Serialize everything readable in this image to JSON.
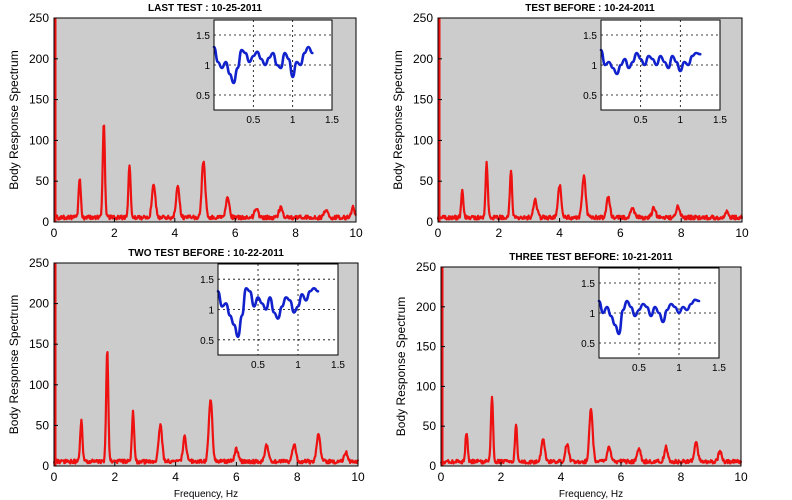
{
  "chart_data": [
    {
      "type": "line",
      "title": "LAST TEST : 10-25-2011",
      "xlabel": "",
      "ylabel": "Body Response Spectrum",
      "xlim": [
        0,
        10
      ],
      "ylim": [
        0,
        250
      ],
      "xticks": [
        "0",
        "2",
        "4",
        "6",
        "8",
        "10"
      ],
      "yticks": [
        "0",
        "50",
        "100",
        "150",
        "200",
        "250"
      ],
      "series_color": "#ee1111",
      "background": "#cccccc",
      "peaks": [
        {
          "x": 0.85,
          "y": 50
        },
        {
          "x": 1.65,
          "y": 118
        },
        {
          "x": 2.5,
          "y": 65
        },
        {
          "x": 3.3,
          "y": 40
        },
        {
          "x": 4.1,
          "y": 38
        },
        {
          "x": 4.95,
          "y": 70
        },
        {
          "x": 5.75,
          "y": 25
        },
        {
          "x": 6.7,
          "y": 12
        },
        {
          "x": 7.5,
          "y": 12
        },
        {
          "x": 9.0,
          "y": 10
        },
        {
          "x": 9.9,
          "y": 12
        }
      ],
      "inset": {
        "xlim": [
          0,
          1.5
        ],
        "ylim": [
          0.25,
          1.75
        ],
        "xticks": [
          "0.5",
          "1",
          "1.5"
        ],
        "yticks": [
          "0.5",
          "1",
          "1.5"
        ],
        "series_color": "#1122cc",
        "x": [
          0.0,
          0.05,
          0.1,
          0.15,
          0.2,
          0.25,
          0.3,
          0.35,
          0.4,
          0.45,
          0.5,
          0.55,
          0.6,
          0.65,
          0.7,
          0.75,
          0.8,
          0.85,
          0.9,
          0.95,
          1.0,
          1.05,
          1.1,
          1.15,
          1.2,
          1.25
        ],
        "y": [
          1.3,
          1.05,
          0.95,
          1.05,
          0.85,
          0.7,
          0.95,
          1.25,
          1.2,
          1.05,
          1.15,
          1.22,
          1.1,
          1.0,
          1.12,
          1.2,
          1.0,
          0.95,
          1.2,
          1.1,
          0.8,
          1.05,
          1.0,
          1.2,
          1.3,
          1.2
        ]
      }
    },
    {
      "type": "line",
      "title": "TEST BEFORE : 10-24-2011",
      "xlabel": "",
      "ylabel": "Body Response Spectrum",
      "xlim": [
        0,
        10
      ],
      "ylim": [
        0,
        250
      ],
      "xticks": [
        "0",
        "2",
        "4",
        "6",
        "8",
        "10"
      ],
      "yticks": [
        "0",
        "50",
        "100",
        "150",
        "200",
        "250"
      ],
      "series_color": "#ee1111",
      "background": "#cccccc",
      "peaks": [
        {
          "x": 0.8,
          "y": 32
        },
        {
          "x": 1.6,
          "y": 68
        },
        {
          "x": 2.4,
          "y": 58
        },
        {
          "x": 3.2,
          "y": 22
        },
        {
          "x": 4.0,
          "y": 40
        },
        {
          "x": 4.8,
          "y": 50
        },
        {
          "x": 5.6,
          "y": 25
        },
        {
          "x": 6.4,
          "y": 12
        },
        {
          "x": 7.1,
          "y": 12
        },
        {
          "x": 7.9,
          "y": 14
        },
        {
          "x": 9.5,
          "y": 8
        }
      ],
      "inset": {
        "xlim": [
          0,
          1.5
        ],
        "ylim": [
          0.25,
          1.75
        ],
        "xticks": [
          "0.5",
          "1",
          "1.5"
        ],
        "yticks": [
          "0.5",
          "1",
          "1.5"
        ],
        "series_color": "#1122cc",
        "x": [
          0.0,
          0.05,
          0.1,
          0.15,
          0.2,
          0.25,
          0.3,
          0.35,
          0.4,
          0.45,
          0.5,
          0.55,
          0.6,
          0.65,
          0.7,
          0.75,
          0.8,
          0.85,
          0.9,
          0.95,
          1.0,
          1.05,
          1.1,
          1.15,
          1.2,
          1.25
        ],
        "y": [
          1.25,
          1.0,
          1.05,
          0.95,
          0.85,
          1.0,
          1.1,
          0.95,
          1.05,
          1.2,
          1.1,
          1.0,
          1.15,
          1.1,
          1.0,
          1.15,
          1.05,
          0.95,
          1.15,
          1.05,
          0.9,
          1.05,
          1.0,
          1.15,
          1.2,
          1.18
        ]
      }
    },
    {
      "type": "line",
      "title": "TWO TEST BEFORE : 10-22-2011",
      "xlabel": "Frequency, Hz",
      "ylabel": "Body Response Spectrum",
      "xlim": [
        0,
        10
      ],
      "ylim": [
        0,
        250
      ],
      "xticks": [
        "0",
        "2",
        "4",
        "6",
        "8",
        "10"
      ],
      "yticks": [
        "0",
        "50",
        "100",
        "150",
        "200",
        "250"
      ],
      "series_color": "#ee1111",
      "background": "#cccccc",
      "peaks": [
        {
          "x": 0.9,
          "y": 52
        },
        {
          "x": 1.75,
          "y": 138
        },
        {
          "x": 2.6,
          "y": 62
        },
        {
          "x": 3.5,
          "y": 45
        },
        {
          "x": 4.3,
          "y": 30
        },
        {
          "x": 5.15,
          "y": 78
        },
        {
          "x": 6.0,
          "y": 15
        },
        {
          "x": 7.0,
          "y": 20
        },
        {
          "x": 7.9,
          "y": 20
        },
        {
          "x": 8.7,
          "y": 35
        },
        {
          "x": 9.6,
          "y": 12
        }
      ],
      "inset": {
        "xlim": [
          0,
          1.5
        ],
        "ylim": [
          0.25,
          1.75
        ],
        "xticks": [
          "0.5",
          "1",
          "1.5"
        ],
        "yticks": [
          "0.5",
          "1",
          "1.5"
        ],
        "series_color": "#1122cc",
        "x": [
          0.0,
          0.05,
          0.1,
          0.15,
          0.2,
          0.25,
          0.3,
          0.35,
          0.4,
          0.45,
          0.5,
          0.55,
          0.6,
          0.65,
          0.7,
          0.75,
          0.8,
          0.85,
          0.9,
          0.95,
          1.0,
          1.05,
          1.1,
          1.15,
          1.2,
          1.25
        ],
        "y": [
          1.3,
          1.05,
          1.1,
          0.9,
          0.75,
          0.55,
          0.9,
          1.35,
          1.3,
          1.05,
          1.2,
          1.1,
          1.0,
          1.2,
          0.95,
          0.85,
          1.05,
          1.2,
          1.15,
          0.95,
          1.05,
          1.25,
          1.15,
          1.3,
          1.35,
          1.3
        ]
      }
    },
    {
      "type": "line",
      "title": "THREE TEST BEFORE:    10-21-2011",
      "xlabel": "Frequency, Hz",
      "ylabel": "Body Response Spectrum",
      "xlim": [
        0,
        10
      ],
      "ylim": [
        0,
        250
      ],
      "xticks": [
        "0",
        "2",
        "4",
        "6",
        "8",
        "10"
      ],
      "yticks": [
        "0",
        "50",
        "100",
        "150",
        "200",
        "250"
      ],
      "series_color": "#ee1111",
      "background": "#cccccc",
      "peaks": [
        {
          "x": 0.85,
          "y": 38
        },
        {
          "x": 1.7,
          "y": 80
        },
        {
          "x": 2.5,
          "y": 48
        },
        {
          "x": 3.4,
          "y": 28
        },
        {
          "x": 4.2,
          "y": 22
        },
        {
          "x": 5.0,
          "y": 65
        },
        {
          "x": 5.6,
          "y": 18
        },
        {
          "x": 6.6,
          "y": 15
        },
        {
          "x": 7.5,
          "y": 18
        },
        {
          "x": 8.5,
          "y": 25
        },
        {
          "x": 9.3,
          "y": 12
        }
      ],
      "inset": {
        "xlim": [
          0,
          1.5
        ],
        "ylim": [
          0.25,
          1.75
        ],
        "xticks": [
          "0.5",
          "1",
          "1.5"
        ],
        "yticks": [
          "0.5",
          "1",
          "1.5"
        ],
        "series_color": "#1122cc",
        "x": [
          0.0,
          0.05,
          0.1,
          0.15,
          0.2,
          0.25,
          0.3,
          0.35,
          0.4,
          0.45,
          0.5,
          0.55,
          0.6,
          0.65,
          0.7,
          0.75,
          0.8,
          0.85,
          0.9,
          0.95,
          1.0,
          1.05,
          1.1,
          1.15,
          1.2,
          1.25
        ],
        "y": [
          1.2,
          1.0,
          1.1,
          0.95,
          0.8,
          0.65,
          1.05,
          1.2,
          1.1,
          0.95,
          1.05,
          1.15,
          1.1,
          0.95,
          1.1,
          1.0,
          0.85,
          1.05,
          1.15,
          1.1,
          1.0,
          1.1,
          1.05,
          1.15,
          1.22,
          1.2
        ]
      }
    }
  ]
}
